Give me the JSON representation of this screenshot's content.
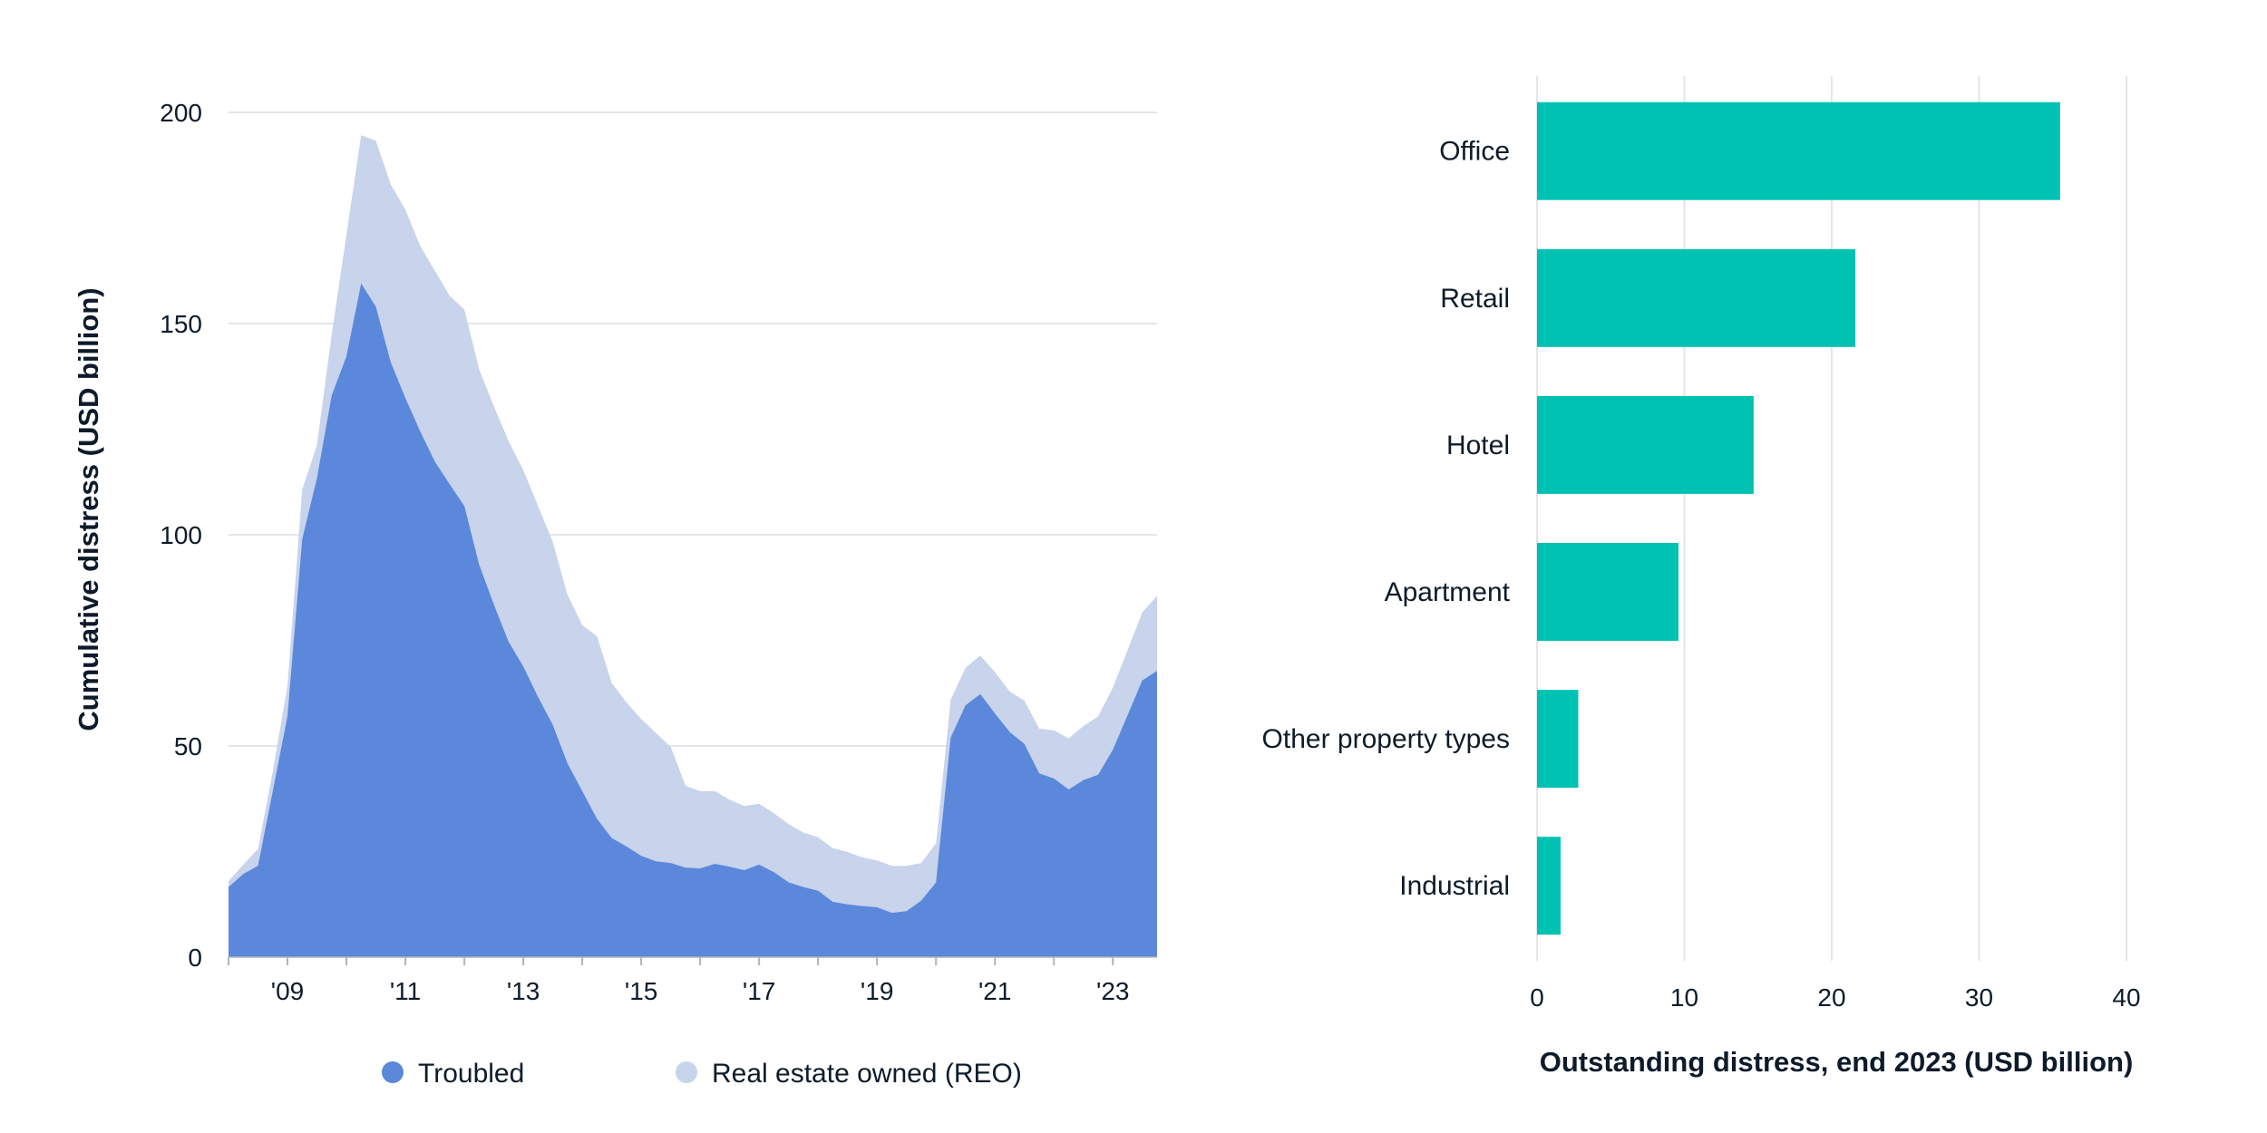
{
  "chart_data": [
    {
      "type": "area",
      "stacked": true,
      "title": "",
      "xlabel": "",
      "ylabel": "Cumulative distress (USD billion)",
      "ylim": [
        0,
        200
      ],
      "yticks": [
        0,
        50,
        100,
        150,
        200
      ],
      "ytick_labels": [
        "0",
        "50",
        "100",
        "150",
        "200"
      ],
      "xlim": [
        2008.0,
        2023.75
      ],
      "xticks": [
        2008,
        2009,
        2010,
        2011,
        2012,
        2013,
        2014,
        2015,
        2016,
        2017,
        2018,
        2019,
        2020,
        2021,
        2022,
        2023
      ],
      "xtick_labels": [
        {
          "year": 2009,
          "label": "'09"
        },
        {
          "year": 2011,
          "label": "'11"
        },
        {
          "year": 2013,
          "label": "'13"
        },
        {
          "year": 2015,
          "label": "'15"
        },
        {
          "year": 2017,
          "label": "'17"
        },
        {
          "year": 2019,
          "label": "'19"
        },
        {
          "year": 2021,
          "label": "'21"
        },
        {
          "year": 2023,
          "label": "'23"
        }
      ],
      "grid": "horizontal",
      "legend_position": "bottom",
      "x_frequency": "quarterly",
      "x_start": 2008.0,
      "x_step": 0.25,
      "series": [
        {
          "name": "Troubled",
          "color": "#5B88DA",
          "values": [
            16.6,
            19.7,
            21.6,
            39.3,
            57.0,
            99.0,
            113.4,
            133.0,
            142.2,
            159.5,
            154.0,
            140.9,
            132.4,
            124.5,
            117.3,
            112.0,
            106.8,
            93.0,
            83.5,
            74.7,
            68.8,
            61.6,
            55.0,
            45.9,
            39.3,
            32.8,
            28.2,
            26.2,
            24.0,
            22.7,
            22.3,
            21.2,
            21.0,
            22.1,
            21.4,
            20.6,
            21.9,
            20.1,
            17.7,
            16.6,
            15.7,
            13.1,
            12.5,
            12.1,
            11.8,
            10.5,
            10.9,
            13.4,
            17.7,
            52.0,
            59.6,
            62.3,
            57.7,
            53.3,
            50.5,
            43.5,
            42.3,
            39.7,
            41.9,
            43.2,
            49.1,
            57.3,
            65.5,
            67.8
          ]
        },
        {
          "name": "Real estate owned (REO)",
          "color": "#C8D3EC",
          "values": [
            1.4,
            2.2,
            4.0,
            4.6,
            7.2,
            11.7,
            7.8,
            14.4,
            28.8,
            35.1,
            39.3,
            42.1,
            44.6,
            43.9,
            45.2,
            44.6,
            46.5,
            46.2,
            46.9,
            47.5,
            46.5,
            45.2,
            43.3,
            39.9,
            39.3,
            43.2,
            36.7,
            34.1,
            32.4,
            30.4,
            27.5,
            19.4,
            18.3,
            17.2,
            15.9,
            15.2,
            14.4,
            14.0,
            13.8,
            12.9,
            12.7,
            12.7,
            12.4,
            11.5,
            11.1,
            11.1,
            10.7,
            8.9,
            9.2,
            8.9,
            8.9,
            9.1,
            9.8,
            9.6,
            10.2,
            10.6,
            11.4,
            12.1,
            12.8,
            13.8,
            14.7,
            15.4,
            16.1,
            17.8
          ]
        }
      ],
      "totals": [
        18.0,
        21.9,
        25.6,
        43.9,
        64.2,
        110.7,
        121.2,
        147.4,
        171.0,
        194.6,
        193.3,
        183.0,
        177.0,
        168.4,
        162.5,
        156.6,
        153.3,
        139.2,
        130.4,
        122.2,
        115.3,
        106.8,
        98.3,
        85.8,
        78.6,
        76.0,
        64.9,
        60.3,
        56.4,
        53.1,
        49.8,
        40.6,
        39.3,
        39.3,
        37.3,
        35.8,
        36.3,
        34.1,
        31.5,
        29.5,
        28.4,
        25.8,
        24.9,
        23.6,
        22.9,
        21.6,
        21.6,
        22.3,
        26.9,
        60.9,
        68.5,
        71.4,
        67.5,
        62.9,
        60.7,
        54.1,
        53.7,
        51.8,
        54.7,
        57.0,
        63.8,
        72.7,
        81.6,
        85.6
      ]
    },
    {
      "type": "bar",
      "orientation": "horizontal",
      "title": "",
      "xlabel": "Outstanding distress, end 2023 (USD billion)",
      "ylabel": "",
      "xlim": [
        0,
        40
      ],
      "xticks": [
        0,
        10,
        20,
        30,
        40
      ],
      "xtick_labels": [
        "0",
        "10",
        "20",
        "30",
        "40"
      ],
      "grid": "vertical",
      "color": "#00C2B2",
      "categories": [
        "Office",
        "Retail",
        "Hotel",
        "Apartment",
        "Other property types",
        "Industrial"
      ],
      "values": [
        35.5,
        21.6,
        14.7,
        9.6,
        2.8,
        1.6
      ]
    }
  ],
  "legend": {
    "items": [
      {
        "label": "Troubled",
        "color": "#5B88DA"
      },
      {
        "label": "Real estate owned (REO)",
        "color": "#C8D3EC"
      }
    ]
  },
  "colors": {
    "text": "#0d1b2a",
    "grid": "#e3e6ea",
    "axis": "#b0b4ba"
  }
}
